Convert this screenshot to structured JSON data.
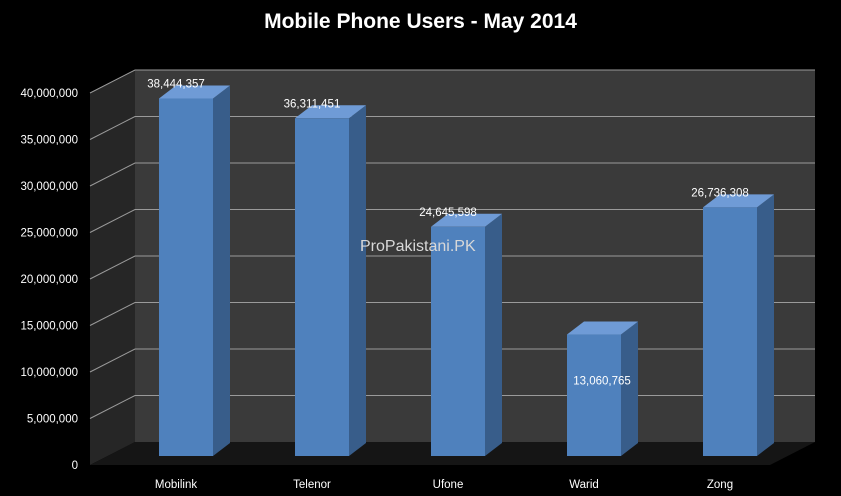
{
  "chart_data": {
    "type": "bar",
    "title": "Mobile Phone Users - May 2014",
    "categories": [
      "Mobilink",
      "Telenor",
      "Ufone",
      "Warid",
      "Zong"
    ],
    "series": [
      {
        "values": [
          38444357,
          36311451,
          24645598,
          13060765,
          26736308
        ]
      }
    ],
    "data_labels": [
      "38,444,357",
      "36,311,451",
      "24,645,598",
      "13,060,765",
      "26,736,308"
    ],
    "y_ticks": [
      "0",
      "5,000,000",
      "10,000,000",
      "15,000,000",
      "20,000,000",
      "25,000,000",
      "30,000,000",
      "35,000,000",
      "40,000,000"
    ],
    "ylim": [
      0,
      40000000
    ],
    "grid": true,
    "legend": "none",
    "watermark": "ProPakistani.PK",
    "colors": {
      "background": "#000000",
      "wall": "#3a3a3a",
      "side_wall": "#262626",
      "floor": "#151515",
      "bar_front": "#4f81bd",
      "bar_side": "#385d8a",
      "bar_top": "#6f9bd6",
      "grid": "#9a9a9a"
    }
  }
}
